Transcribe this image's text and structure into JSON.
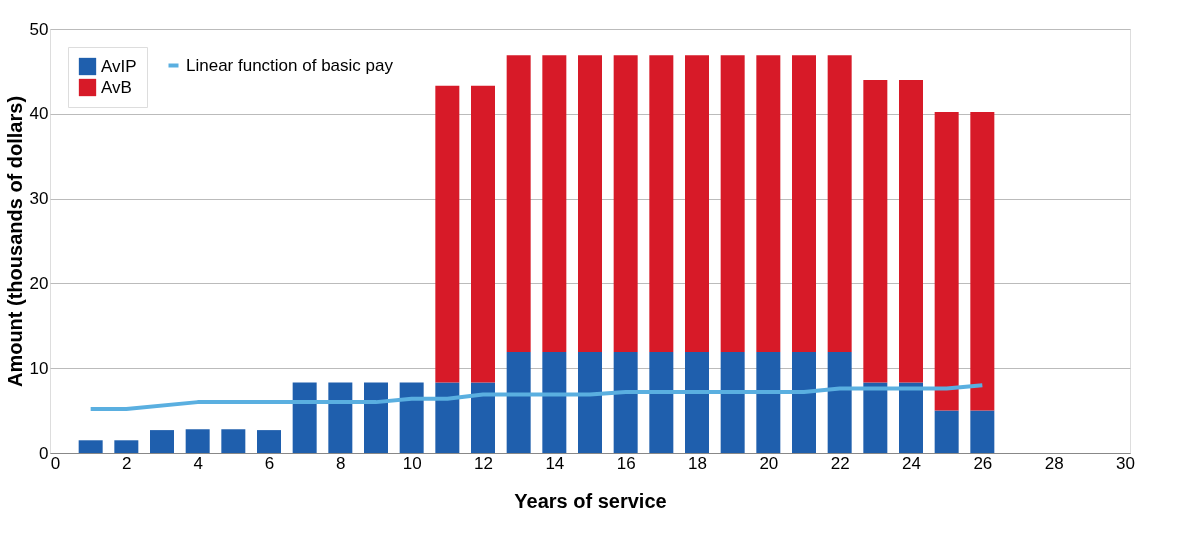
{
  "chart_data": {
    "type": "bar",
    "stacked": true,
    "xlabel": "Years of service",
    "ylabel": "Amount (thousands of dollars)",
    "x": [
      1,
      2,
      3,
      4,
      5,
      6,
      7,
      8,
      9,
      10,
      11,
      12,
      13,
      14,
      15,
      16,
      17,
      18,
      19,
      20,
      21,
      22,
      23,
      24,
      25,
      26
    ],
    "series": [
      {
        "name": "AvIP",
        "color": "#1f5fad",
        "values": [
          1.5,
          1.5,
          2.7,
          2.8,
          2.8,
          2.7,
          8.3,
          8.3,
          8.3,
          8.3,
          8.3,
          8.3,
          11.9,
          11.9,
          11.9,
          11.9,
          11.9,
          11.9,
          11.9,
          11.9,
          11.9,
          11.9,
          8.3,
          8.3,
          5.0,
          5.0
        ]
      },
      {
        "name": "AvB",
        "color": "#d71a28",
        "values": [
          null,
          null,
          null,
          null,
          null,
          null,
          null,
          null,
          null,
          null,
          35.0,
          35.0,
          35.0,
          35.0,
          35.0,
          35.0,
          35.0,
          35.0,
          35.0,
          35.0,
          35.0,
          35.0,
          35.7,
          35.7,
          35.2,
          35.2
        ]
      },
      {
        "name": "Linear function of basic pay",
        "type": "line",
        "color": "#5aafe0",
        "x": [
          1,
          2,
          4,
          9,
          10,
          11,
          12,
          15,
          16,
          21,
          22,
          25,
          26
        ],
        "values": [
          5.2,
          5.2,
          6.0,
          6.0,
          6.4,
          6.4,
          6.9,
          6.9,
          7.2,
          7.2,
          7.6,
          7.6,
          8.0
        ]
      }
    ],
    "xlim": [
      0,
      30
    ],
    "xticks": [
      0,
      2,
      4,
      6,
      8,
      10,
      12,
      14,
      16,
      18,
      20,
      22,
      24,
      26,
      28,
      30
    ],
    "ylim": [
      0,
      50
    ],
    "yticks": [
      0,
      10,
      20,
      30,
      40,
      50
    ],
    "grid": "y",
    "legend": "top left",
    "marker": "none",
    "line_style": "solid"
  }
}
